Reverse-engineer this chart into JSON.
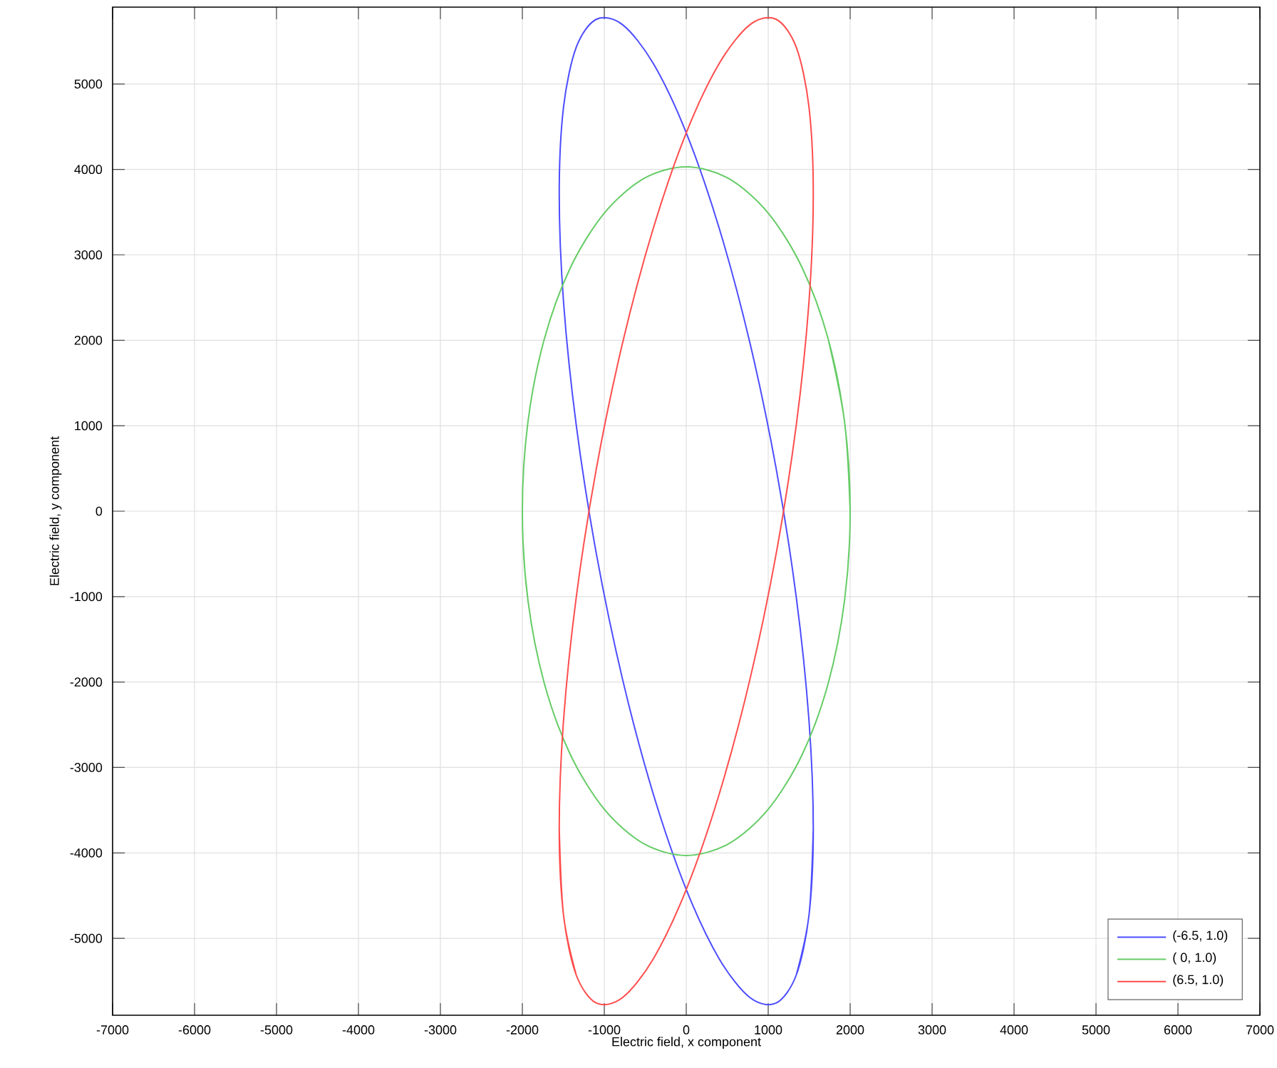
{
  "chart_data": {
    "type": "line",
    "xlabel": "Electric field, x component",
    "ylabel": "Electric field, y component",
    "xlim": [
      -7000,
      7000
    ],
    "ylim": [
      -5900,
      5900
    ],
    "xticks": [
      -7000,
      -6000,
      -5000,
      -4000,
      -3000,
      -2000,
      -1000,
      0,
      1000,
      2000,
      3000,
      4000,
      5000,
      6000,
      7000
    ],
    "yticks": [
      -5000,
      -4000,
      -3000,
      -2000,
      -1000,
      0,
      1000,
      2000,
      3000,
      4000,
      5000
    ],
    "grid": true,
    "legend": "bottom right",
    "marker": "none",
    "line_style": "solid",
    "series": [
      {
        "name": "(-6.5, 1.0)",
        "color": "#4d4dff",
        "x": [
          1550,
          1497,
          1342,
          1096,
          775,
          401,
          0,
          -401,
          -775,
          -1096,
          -1342,
          -1497,
          -1550,
          -1497,
          -1342,
          -1096,
          -775,
          -401,
          0,
          401,
          775,
          1096,
          1342,
          1497
        ],
        "values": [
          -3715,
          -4734,
          -5431,
          -5758,
          -5692,
          -5238,
          -4428,
          -3315,
          -1977,
          -504,
          1004,
          2443,
          3715,
          4734,
          5431,
          5758,
          5692,
          5238,
          4428,
          3315,
          1977,
          504,
          -1004,
          -2443
        ]
      },
      {
        "name": "( 0, 1.0)",
        "color": "#66cc66",
        "x": [
          2000,
          1932,
          1732,
          1414,
          1000,
          518,
          0,
          -518,
          -1000,
          -1414,
          -1732,
          -1932,
          -2000,
          -1932,
          -1732,
          -1414,
          -1000,
          -518,
          0,
          518,
          1000,
          1414,
          1732,
          1932
        ],
        "values": [
          0,
          1043,
          2015,
          2850,
          3490,
          3893,
          4030,
          3893,
          3490,
          2850,
          2015,
          1043,
          0,
          -1043,
          -2015,
          -2850,
          -3490,
          -3893,
          -4030,
          -3893,
          -3490,
          -2850,
          -2015,
          -1043
        ]
      },
      {
        "name": "(6.5, 1.0)",
        "color": "#ff4d4d",
        "x": [
          -1550,
          -1497,
          -1342,
          -1096,
          -775,
          -401,
          0,
          401,
          775,
          1096,
          1342,
          1497,
          1550,
          1497,
          1342,
          1096,
          775,
          401,
          0,
          -401,
          -775,
          -1096,
          -1342,
          -1497
        ],
        "values": [
          -3715,
          -4734,
          -5431,
          -5758,
          -5692,
          -5238,
          -4428,
          -3315,
          -1977,
          -504,
          1004,
          2443,
          3715,
          4734,
          5431,
          5758,
          5692,
          5238,
          4428,
          3315,
          1977,
          504,
          -1004,
          -2443
        ]
      }
    ]
  }
}
